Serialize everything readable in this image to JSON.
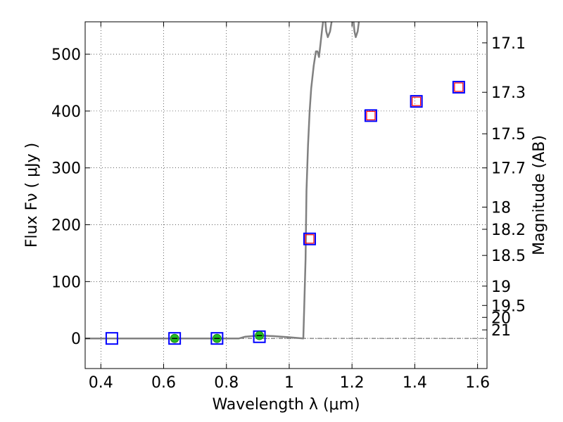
{
  "chart_data": {
    "type": "scatter",
    "xlabel": "Wavelength  λ (μm)",
    "ylabel": "Flux  Fν  ( μJy )",
    "ylabel_right": "Magnitude (AB)",
    "xlim": [
      0.35,
      1.63
    ],
    "ylim": [
      -53,
      557
    ],
    "x_ticks": [
      0.4,
      0.6,
      0.8,
      1.0,
      1.2,
      1.4,
      1.6
    ],
    "x_tick_labels": [
      "0.4",
      "0.6",
      "0.8",
      "1",
      "1.2",
      "1.4",
      "1.6"
    ],
    "y_ticks": [
      0,
      100,
      200,
      300,
      400,
      500
    ],
    "y_tick_labels": [
      "0",
      "100",
      "200",
      "300",
      "400",
      "500"
    ],
    "right_ticks": [
      {
        "label": "17.1",
        "flux": 520
      },
      {
        "label": "17.3",
        "flux": 433
      },
      {
        "label": "17.5",
        "flux": 360
      },
      {
        "label": "17.7",
        "flux": 300
      },
      {
        "label": "18",
        "flux": 231
      },
      {
        "label": "18.2",
        "flux": 192
      },
      {
        "label": "18.5",
        "flux": 146
      },
      {
        "label": "19",
        "flux": 92
      },
      {
        "label": "19.5",
        "flux": 58
      },
      {
        "label": "20",
        "flux": 37
      },
      {
        "label": "21",
        "flux": 15
      }
    ],
    "grid": true,
    "colors": {
      "model": "#808080",
      "observed_box": "#0000ff",
      "model_box": "#ff0000",
      "detection": "#22bb22"
    },
    "series": [
      {
        "kind": "line",
        "points": [
          [
            0.35,
            0
          ],
          [
            0.6,
            0
          ],
          [
            0.84,
            0
          ],
          [
            0.86,
            3
          ],
          [
            0.9,
            5
          ],
          [
            0.95,
            4
          ],
          [
            1.0,
            2
          ],
          [
            1.045,
            0
          ],
          [
            1.048,
            60
          ],
          [
            1.052,
            140
          ],
          [
            1.055,
            260
          ],
          [
            1.06,
            340
          ],
          [
            1.065,
            400
          ],
          [
            1.07,
            440
          ],
          [
            1.078,
            480
          ],
          [
            1.085,
            505
          ],
          [
            1.09,
            505
          ],
          [
            1.095,
            495
          ],
          [
            1.1,
            520
          ],
          [
            1.105,
            545
          ],
          [
            1.108,
            557
          ]
        ]
      },
      {
        "kind": "line",
        "points": [
          [
            1.115,
            557
          ],
          [
            1.118,
            540
          ],
          [
            1.123,
            530
          ],
          [
            1.13,
            540
          ],
          [
            1.135,
            557
          ]
        ]
      },
      {
        "kind": "line",
        "points": [
          [
            1.205,
            557
          ],
          [
            1.208,
            540
          ],
          [
            1.212,
            530
          ],
          [
            1.218,
            540
          ],
          [
            1.222,
            557
          ]
        ]
      },
      {
        "kind": "observed_boxes",
        "x": [
          0.435,
          0.635,
          0.77,
          0.905,
          1.065,
          1.26,
          1.405,
          1.54
        ],
        "y": [
          0,
          0,
          0,
          3,
          175,
          392,
          417,
          442
        ]
      },
      {
        "kind": "model_boxes",
        "x": [
          1.065,
          1.26,
          1.405,
          1.54
        ],
        "y": [
          175,
          392,
          417,
          442
        ]
      },
      {
        "kind": "detections",
        "x": [
          0.635,
          0.77,
          0.905
        ],
        "y": [
          0,
          0,
          5
        ]
      }
    ]
  }
}
